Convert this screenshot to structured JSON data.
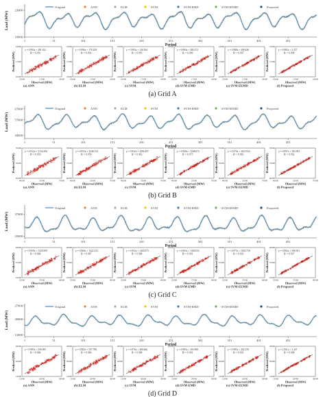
{
  "figure": {
    "legend_labels": [
      "Original",
      "ANN",
      "ELM",
      "SVM",
      "SVM-EMD",
      "SVM-EEMD",
      "Proposed"
    ],
    "model_labels": [
      "(a) ANN",
      "(b) ELM",
      "(c) SVM",
      "(d) SVM-EMD",
      "(e) SVM-EEMD",
      "(f) Proposed"
    ],
    "x_axis_label": "Period",
    "line_y_label": "Load (MW)",
    "scatter_x_label": "Observed (MW)",
    "scatter_y_label": "Predicted (MW)",
    "x_ticks": [
      "1",
      "51",
      "101",
      "151",
      "201",
      "251",
      "301",
      "351",
      "401",
      "451"
    ]
  },
  "colors": {
    "original": "#5b9bd5",
    "ann": "#ed7d31",
    "elm": "#a5a5a5",
    "svm": "#ffc000",
    "svm_emd": "#4472c4",
    "svm_eemd": "#70ad47",
    "proposed": "#264478",
    "scatter": "#e8231b"
  },
  "chart_data": [
    {
      "type": "line",
      "caption": "(a) Grid A",
      "ylabel": "Load (MW)",
      "xlabel": "Period",
      "yticks": [
        10000,
        23000
      ],
      "ylim": [
        10000,
        26000
      ],
      "x_range": [
        1,
        500
      ],
      "series_note": "Original and six model forecasts overlap closely",
      "base_level": 18500,
      "amplitude": 5500,
      "scatter_panels": [
        {
          "label": "(a) ANN",
          "equation": "y = 0.994x + 281.162",
          "r2": "R² = 0.991"
        },
        {
          "label": "(b) ELM",
          "equation": "y = 0.996x + 178.259",
          "r2": "R² = 0.993"
        },
        {
          "label": "(c) SVM",
          "equation": "y = 0.993x + 126.564",
          "r2": "R² = 0.995"
        },
        {
          "label": "(d) SVM-EMD",
          "equation": "y = 0.984x + 280.372",
          "r2": "R² = 0.996"
        },
        {
          "label": "(e) SVM-EEMD",
          "equation": "y = 0.988x + 209.436",
          "r2": "R² = 0.997"
        },
        {
          "label": "(f) Proposed",
          "equation": "y = 0.982x + 2.357",
          "r2": "R² = 0.998"
        }
      ],
      "scatter_xticks": [
        "10000",
        "17000",
        "24000"
      ],
      "scatter_yticks": [
        "10000",
        "17000",
        "24000"
      ]
    },
    {
      "type": "line",
      "caption": "(b) Grid B",
      "ylabel": "Load (MW)",
      "xlabel": "Period",
      "yticks": [
        43000,
        57000,
        67000
      ],
      "ylim": [
        40000,
        70000
      ],
      "x_range": [
        1,
        500
      ],
      "series_note": "Original and six model forecasts overlap closely",
      "base_level": 55000,
      "amplitude": 9000,
      "scatter_panels": [
        {
          "label": "(a) ANN",
          "equation": "y = 0.912x + 5134.494",
          "r2": "R² = 0.950"
        },
        {
          "label": "(b) ELM",
          "equation": "y = 0.933x + 4348.154",
          "r2": "R² = 0.958"
        },
        {
          "label": "(c) SVM",
          "equation": "y = 0.932x + 4296.497",
          "r2": "R² = 0.963"
        },
        {
          "label": "(d) SVM-EMD",
          "equation": "y = 0.949x + 3248.672",
          "r2": "R² = 0.975"
        },
        {
          "label": "(e) SVM-EEMD",
          "equation": "y = 0.970x + 2023.933",
          "r2": "R² = 0.983"
        },
        {
          "label": "(f) Proposed",
          "equation": "y = 0.997x + 183.583",
          "r2": "R² = 0.992"
        }
      ],
      "scatter_xticks": [
        "40000",
        "55000",
        "70000"
      ],
      "scatter_yticks": [
        "40000",
        "55000",
        "70000"
      ]
    },
    {
      "type": "line",
      "caption": "(c) Grid C",
      "ylabel": "Load (MW)",
      "xlabel": "Period",
      "yticks": [
        25000,
        37000
      ],
      "ylim": [
        24000,
        42000
      ],
      "x_range": [
        1,
        500
      ],
      "series_note": "Original and six model forecasts overlap closely",
      "base_level": 31000,
      "amplitude": 6000,
      "scatter_panels": [
        {
          "label": "(a) ANN",
          "equation": "y = 0.959x + 1329.509",
          "r2": "R² = 0.984"
        },
        {
          "label": "(b) ELM",
          "equation": "y = 0.960x + 1422.233",
          "r2": "R² = 0.987"
        },
        {
          "label": "(c) SVM",
          "equation": "y = 0.952x + 1465.073",
          "r2": "R² = 0.988"
        },
        {
          "label": "(d) SVM-EMD",
          "equation": "y = 0.963x + 1300.552",
          "r2": "R² = 0.991"
        },
        {
          "label": "(e) SVM-EEMD",
          "equation": "y = 0.973x + 1002.730",
          "r2": "R² = 0.993"
        },
        {
          "label": "(f) Proposed",
          "equation": "y = 0.992x + 308.501",
          "r2": "R² = 0.997"
        }
      ],
      "scatter_xticks": [
        "25000",
        "37000",
        "49000"
      ],
      "scatter_yticks": [
        "25000",
        "37000",
        "49000"
      ]
    },
    {
      "type": "line",
      "caption": "(d) Grid D",
      "ylabel": "Load (MW)",
      "xlabel": "Period",
      "yticks": [
        12000,
        20000,
        27000
      ],
      "ylim": [
        11000,
        28000
      ],
      "x_range": [
        1,
        500
      ],
      "series_note": "Original and six model forecasts overlap closely",
      "base_level": 19000,
      "amplitude": 4000,
      "scatter_panels": [
        {
          "label": "(a) ANN",
          "equation": "y = 0.983x + 358.695",
          "r2": "R² = 0.984"
        },
        {
          "label": "(b) ELM",
          "equation": "y = 0.982x + 357.789",
          "r2": "R² = 0.986"
        },
        {
          "label": "(c) SVM",
          "equation": "y = 0.976x + 408.466",
          "r2": "R² = 0.988"
        },
        {
          "label": "(d) SVM-EMD",
          "equation": "y = 0.985x + 292.968",
          "r2": "R² = 0.991"
        },
        {
          "label": "(e) SVM-EEMD",
          "equation": "y = 0.985x + 282.276",
          "r2": "R² = 0.993"
        },
        {
          "label": "(f) Proposed",
          "equation": "y = 1.001x + 3.447",
          "r2": "R² = 0.998"
        }
      ],
      "scatter_xticks": [
        "12000",
        "20000",
        "28000"
      ],
      "scatter_yticks": [
        "12000",
        "20000",
        "28000"
      ]
    }
  ]
}
